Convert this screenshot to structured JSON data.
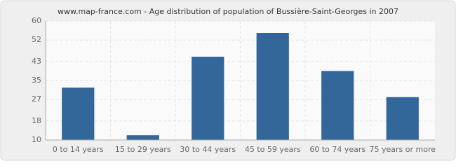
{
  "chart_data": {
    "type": "bar",
    "title": "www.map-france.com - Age distribution of population of Bussière-Saint-Georges in 2007",
    "categories": [
      "0 to 14 years",
      "15 to 29 years",
      "30 to 44 years",
      "45 to 59 years",
      "60 to 74 years",
      "75 years or more"
    ],
    "values": [
      32,
      12,
      45,
      55,
      39,
      28
    ],
    "color": "#336699",
    "ylim": [
      10,
      60
    ],
    "yticks": [
      10,
      18,
      27,
      35,
      43,
      52,
      60
    ],
    "grid": true
  }
}
